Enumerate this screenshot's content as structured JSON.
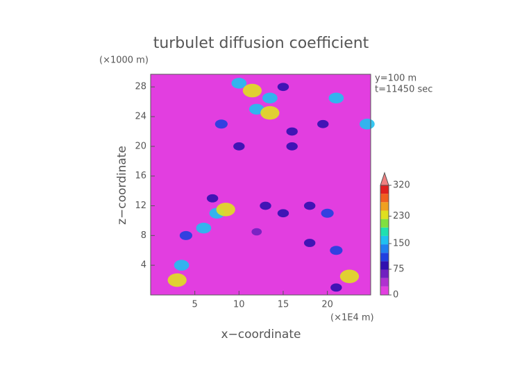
{
  "chart_data": {
    "type": "contour",
    "title": "turbulet diffusion coefficient",
    "y_unit": "(×1000 m)",
    "x_unit": "(×1E4 m)",
    "xlabel": "x−coordinate",
    "ylabel": "z−coordinate",
    "annotations": [
      "y=100 m",
      "t=11450 sec"
    ],
    "xlim": [
      0,
      24.9
    ],
    "xticks": [
      5,
      10,
      15,
      20
    ],
    "ylim": [
      0,
      29.7
    ],
    "yticks": [
      4,
      8,
      12,
      16,
      20,
      24,
      28
    ],
    "colorbar": {
      "lim": [
        0,
        320
      ],
      "ticks": [
        0,
        75,
        150,
        230,
        320
      ],
      "colors": [
        "#e23ee0",
        "#b030d0",
        "#7020c0",
        "#3010b0",
        "#2040e0",
        "#2080f0",
        "#20c0f0",
        "#20e0b0",
        "#80e040",
        "#e0e020",
        "#f0a020",
        "#f06020",
        "#e02020"
      ],
      "over_color": "#f08080"
    },
    "x": [
      10,
      11.5,
      13.5,
      15,
      12,
      13.5,
      8,
      16,
      19.5,
      10,
      16,
      7,
      13,
      18,
      20,
      7.5,
      8.5,
      6,
      4,
      3.5,
      3,
      18,
      21,
      22.5,
      21,
      15,
      12,
      24.5,
      21
    ],
    "y": [
      28.5,
      27.5,
      26.5,
      28,
      25,
      24.5,
      23,
      22,
      23,
      20,
      20,
      13,
      12,
      12,
      11,
      11,
      11.5,
      9,
      8,
      4,
      2,
      7,
      6,
      2.5,
      1,
      11,
      8.5,
      23,
      26.5
    ],
    "values": [
      150,
      230,
      150,
      75,
      150,
      230,
      100,
      75,
      75,
      75,
      75,
      75,
      75,
      75,
      100,
      150,
      230,
      150,
      100,
      150,
      230,
      75,
      100,
      230,
      75,
      75,
      50,
      150,
      150
    ]
  }
}
